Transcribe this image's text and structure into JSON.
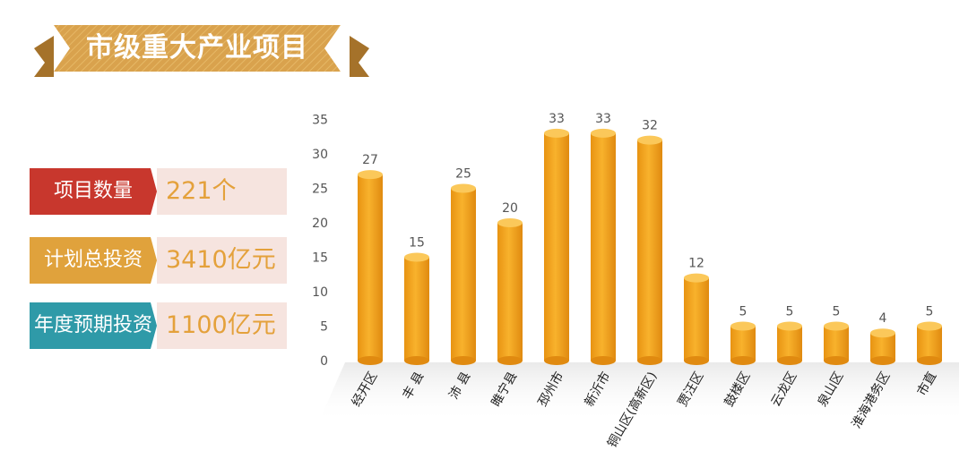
{
  "banner": {
    "title": "市级重大产业项目"
  },
  "stats": [
    {
      "label": "项目数量",
      "value": "221个",
      "color": "#c8372d"
    },
    {
      "label": "计划总投资",
      "value": "3410亿元",
      "color": "#e0a23c"
    },
    {
      "label": "年度预期投资",
      "value": "1100亿元",
      "color": "#2f9aa8"
    }
  ],
  "chart_data": {
    "type": "bar",
    "categories": [
      "经开区",
      "丰 县",
      "沛 县",
      "睢宁县",
      "邳州市",
      "新沂市",
      "铜山区(高新区)",
      "贾汪区",
      "鼓楼区",
      "云龙区",
      "泉山区",
      "淮海港务区",
      "市直"
    ],
    "values": [
      27,
      15,
      25,
      20,
      33,
      33,
      32,
      12,
      5,
      5,
      5,
      4,
      5
    ],
    "ylim": [
      0,
      35
    ],
    "yticks": [
      0,
      5,
      10,
      15,
      20,
      25,
      30,
      35
    ],
    "grid": false,
    "bar_color": "#f2a525"
  }
}
